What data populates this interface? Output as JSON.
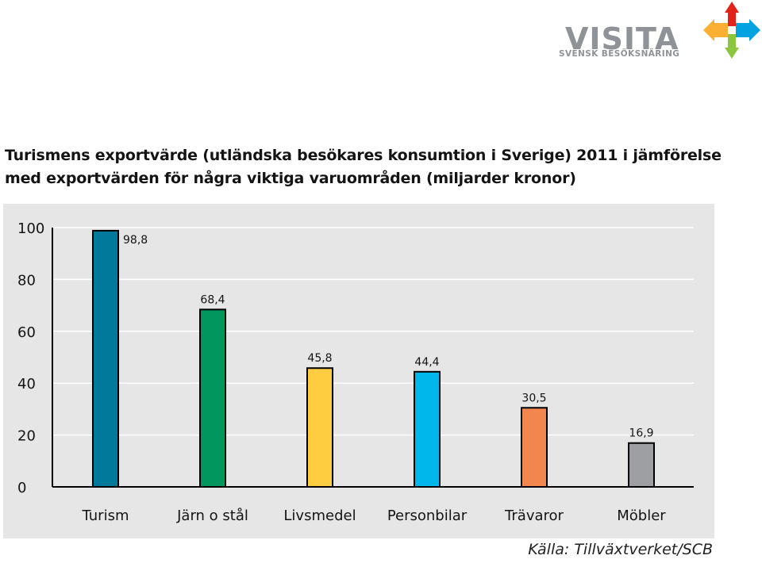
{
  "logo": {
    "name": "VISITA",
    "tagline": "SVENSK BESÖKSNÄRING"
  },
  "colors": {
    "plot_background": "#e6e6e7",
    "axis": "#000000",
    "gridline": "#ffffff"
  },
  "chart_data": {
    "type": "bar",
    "title": "Turismens exportvärde (utländska besökares konsumtion i Sverige) 2011 i jämförelse med exportvärden för några viktiga varuområden (miljarder kronor)",
    "source": "Källa: Tillväxtverket/SCB",
    "categories": [
      "Turism",
      "Järn o stål",
      "Livsmedel",
      "Personbilar",
      "Trävaror",
      "Möbler"
    ],
    "values": [
      98.8,
      68.4,
      45.8,
      44.4,
      30.5,
      16.9
    ],
    "data_labels": [
      "98,8",
      "68,4",
      "45,8",
      "44,4",
      "30,5",
      "16,9"
    ],
    "bar_colors": [
      "#00799b",
      "#00965e",
      "#ffcd3f",
      "#00b7ec",
      "#f1864e",
      "#9d9fa2"
    ],
    "ylim": [
      0,
      100
    ],
    "yticks": [
      0,
      20,
      40,
      60,
      80,
      100
    ],
    "xlabel": "",
    "ylabel": "",
    "grid": true,
    "legend": "none"
  }
}
